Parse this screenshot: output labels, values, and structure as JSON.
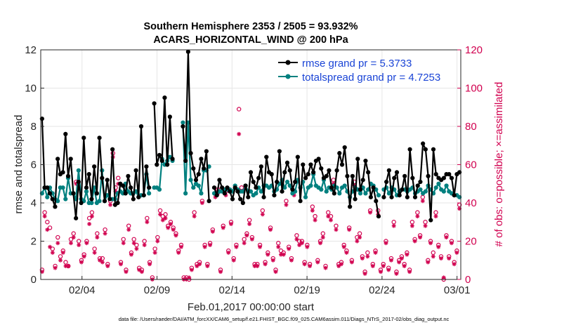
{
  "chart_data": {
    "type": "line",
    "title": "Southern Hemisphere 2353 / 2505 = 93.932%",
    "subtitle": "ACARS_HORIZONTAL_WIND @ 200 hPa",
    "xlabel": "Feb.01,2017 00:00:00 start",
    "ylabel": "rmse and totalspread",
    "ylabel_right": "# of obs: o=possible; ×=assimilated",
    "footnote": "data file: /Users/raeder/DAI/ATM_forcXX/CAM6_setup/f.e21.FHIST_BGC.f09_025.CAM6assim.011/Diags_NTrS_2017-02/obs_diag_output.nc",
    "xlim": [
      1,
      29
    ],
    "ylim": [
      0,
      12
    ],
    "ylim_right": [
      0,
      120
    ],
    "x_ticks": [
      {
        "value": 3.75,
        "label": "02/04"
      },
      {
        "value": 8.75,
        "label": "02/09"
      },
      {
        "value": 13.75,
        "label": "02/14"
      },
      {
        "value": 18.75,
        "label": "02/19"
      },
      {
        "value": 23.75,
        "label": "02/24"
      },
      {
        "value": 28.75,
        "label": "03/01"
      }
    ],
    "y_ticks": [
      0,
      2,
      4,
      6,
      8,
      10,
      12
    ],
    "y_ticks_right": [
      0,
      20,
      40,
      60,
      80,
      100,
      120
    ],
    "legend": [
      "rmse grand pr = 5.3733",
      "totalspread grand pr = 4.7253"
    ],
    "colors": {
      "rmse": "#000000",
      "spread": "#00807f",
      "obs": "#d1004f",
      "grid": "#e6e6e6"
    },
    "series": [
      {
        "name": "rmse",
        "values": [
          8.4,
          4.8,
          4.8,
          4.5,
          4.2,
          3.8,
          6.3,
          5.5,
          5.6,
          7.6,
          5.4,
          6.3,
          4.5,
          3.2,
          5.1,
          4.0,
          7.4,
          4.8,
          5.5,
          4.2,
          5.9,
          4.5,
          7.4,
          5.3,
          4.1,
          5.2,
          4.2,
          6.8,
          3.9,
          4.0,
          5.0,
          4.9,
          4.5,
          5.4,
          4.8,
          4.2,
          5.7,
          4.3,
          8.0,
          4.4,
          5.9,
          4.8,
          null,
          9.2,
          6.0,
          6.5,
          6.2,
          9.5,
          6.0,
          8.5,
          6.3,
          null,
          null,
          null,
          8.0,
          6.2,
          11.9,
          6.6,
          5.8,
          5.2,
          5.5,
          6.3,
          5.8,
          6.7,
          4.1,
          null,
          4.8,
          4.4,
          5.2,
          4.8,
          4.5,
          4.8,
          4.6,
          4.2,
          4.8,
          4.6,
          4.2,
          4.0,
          4.9,
          4.3,
          5.6,
          5.1,
          4.8,
          5.3,
          5.9,
          4.3,
          6.4,
          5.6,
          5.5,
          4.4,
          5.1,
          6.7,
          4.6,
          5.6,
          6.1,
          5.7,
          4.7,
          5.1,
          6.4,
          4.1,
          6.0,
          5.3,
          5.5,
          6.0,
          5.6,
          6.2,
          6.3,
          5.8,
          5.3,
          5.4,
          5.7,
          4.8,
          4.5,
          5.7,
          6.6,
          6.0,
          6.9,
          5.4,
          3.8,
          5.4,
          4.2,
          6.3,
          4.7,
          5.2,
          6.2,
          5.6,
          4.3,
          4.8,
          4.1,
          3.3,
          null,
          4.3,
          5.1,
          5.7,
          4.3,
          5.3,
          5.6,
          4.4,
          4.7,
          5.4,
          4.3,
          6.8,
          5.3,
          4.3,
          4.9,
          5.1,
          7.1,
          6.8,
          5.4,
          3.1,
          6.8,
          5.5,
          5.3,
          5.2,
          5.3,
          5.5,
          5.5,
          5.3,
          4.4,
          5.5,
          5.6
        ]
      },
      {
        "name": "totalspread",
        "values": [
          4.5,
          4.8,
          4.3,
          4.8,
          4.5,
          4.2,
          4.1,
          4.8,
          4.8,
          4.2,
          5.3,
          4.5,
          4.5,
          4.2,
          5.7,
          4.2,
          4.1,
          4.6,
          4.0,
          4.0,
          4.8,
          4.0,
          4.1,
          5.7,
          4.1,
          4.4,
          4.2,
          4.2,
          4.2,
          4.5,
          4.6,
          4.5,
          5.0,
          4.6,
          4.5,
          4.5,
          4.6,
          4.3,
          4.4,
          4.4,
          5.5,
          4.5,
          null,
          4.8,
          4.8,
          4.7,
          6.3,
          6.0,
          6.2,
          6.4,
          6.2,
          null,
          null,
          null,
          8.2,
          4.5,
          8.2,
          5.2,
          4.8,
          5.0,
          4.9,
          4.5,
          5.7,
          5.7,
          5.9,
          null,
          4.5,
          4.5,
          4.6,
          4.6,
          4.7,
          4.7,
          4.7,
          4.6,
          4.9,
          4.7,
          4.6,
          4.6,
          4.9,
          4.6,
          4.6,
          4.4,
          4.5,
          4.8,
          4.6,
          4.9,
          4.9,
          4.8,
          4.9,
          4.6,
          4.7,
          5.0,
          5.2,
          4.8,
          5.1,
          4.9,
          4.5,
          4.6,
          5.2,
          4.8,
          5.1,
          4.3,
          4.8,
          4.9,
          5.5,
          4.9,
          4.8,
          4.7,
          5.2,
          4.6,
          4.8,
          4.7,
          4.9,
          4.8,
          4.5,
          4.8,
          4.9,
          4.6,
          4.3,
          4.6,
          4.8,
          4.7,
          4.5,
          4.8,
          4.5,
          4.7,
          5.0,
          4.9,
          4.7,
          4.4,
          null,
          4.7,
          4.8,
          4.5,
          4.8,
          4.7,
          4.4,
          4.6,
          4.7,
          4.7,
          4.6,
          4.7,
          4.8,
          4.5,
          4.6,
          4.7,
          4.5,
          4.6,
          4.9,
          4.7,
          4.5,
          4.8,
          5.0,
          4.7,
          4.6,
          4.9,
          4.6,
          4.5,
          4.4,
          4.4,
          4.3
        ]
      },
      {
        "name": "obs possible",
        "values": [
          5,
          35,
          30,
          27,
          16,
          7,
          22,
          12,
          15,
          9,
          7,
          21,
          24,
          51,
          20,
          10,
          13,
          20,
          32,
          35,
          16,
          24,
          11,
          11,
          26,
          8,
          41,
          66,
          48,
          53,
          9,
          21,
          5,
          28,
          14,
          21,
          18,
          6,
          5,
          20,
          32,
          9,
          1,
          16,
          22,
          36,
          33,
          34,
          28,
          30,
          27,
          24,
          15,
          18,
          1,
          1,
          0,
          6,
          35,
          8,
          9,
          41,
          18,
          8,
          19,
          26,
          45,
          47,
          5,
          28,
          46,
          15,
          30,
          11,
          18,
          89,
          48,
          21,
          24,
          31,
          22,
          8,
          8,
          18,
          36,
          9,
          14,
          27,
          11,
          5,
          19,
          15,
          14,
          41,
          17,
          11,
          46,
          23,
          20,
          20,
          9,
          18,
          8,
          38,
          33,
          10,
          20,
          24,
          7,
          35,
          33,
          52,
          28,
          8,
          9,
          18,
          15,
          27,
          10,
          51,
          22,
          24,
          12,
          4,
          14,
          36,
          8,
          15,
          36,
          5,
          8,
          20,
          6,
          11,
          30,
          4,
          10,
          12,
          8,
          14,
          5,
          30,
          21,
          35,
          23,
          43,
          30,
          10,
          20,
          14,
          35,
          18,
          12,
          0,
          23,
          12,
          20,
          9,
          15,
          39
        ]
      },
      {
        "name": "obs assimilated",
        "values": [
          4,
          33,
          26,
          17,
          14,
          6,
          19,
          10,
          14,
          7,
          7,
          19,
          22,
          50,
          18,
          9,
          12,
          19,
          29,
          33,
          14,
          22,
          10,
          9,
          24,
          7,
          39,
          64,
          46,
          50,
          8,
          19,
          4,
          26,
          13,
          19,
          16,
          5,
          4,
          18,
          30,
          8,
          0,
          14,
          20,
          34,
          31,
          32,
          27,
          29,
          26,
          23,
          14,
          17,
          0,
          0,
          1,
          5,
          33,
          7,
          8,
          40,
          17,
          7,
          18,
          25,
          43,
          45,
          4,
          27,
          44,
          14,
          29,
          10,
          17,
          76,
          46,
          19,
          23,
          29,
          21,
          7,
          7,
          17,
          34,
          8,
          13,
          26,
          10,
          4,
          17,
          13,
          13,
          39,
          16,
          10,
          44,
          21,
          18,
          19,
          8,
          17,
          7,
          36,
          31,
          9,
          19,
          22,
          6,
          33,
          31,
          50,
          26,
          7,
          8,
          17,
          14,
          26,
          9,
          49,
          20,
          22,
          11,
          3,
          12,
          35,
          7,
          14,
          34,
          4,
          7,
          19,
          5,
          10,
          28,
          3,
          9,
          11,
          7,
          13,
          4,
          28,
          20,
          33,
          22,
          41,
          28,
          9,
          19,
          12,
          33,
          17,
          11,
          1,
          22,
          11,
          19,
          8,
          14,
          37
        ]
      }
    ]
  }
}
